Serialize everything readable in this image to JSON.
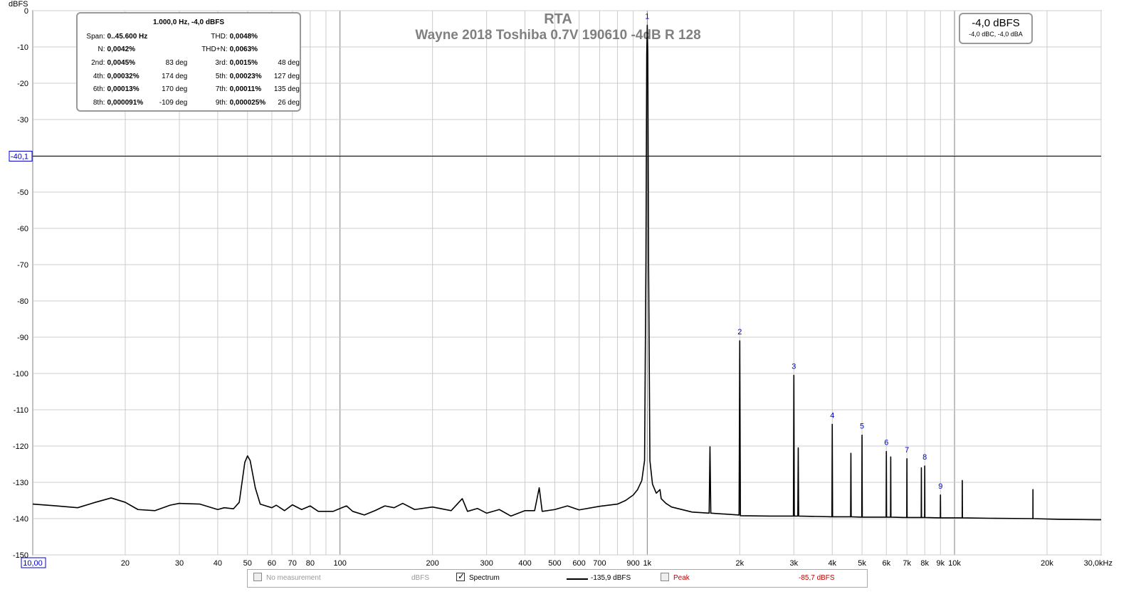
{
  "chart_data": {
    "type": "line",
    "title": "RTA",
    "subtitle": "Wayne 2018 Toshiba 0.7V 190610 -4dB R 128",
    "ylabel": "dBFS",
    "xscale": "log",
    "xlim": [
      10,
      30000
    ],
    "ylim": [
      -150,
      0
    ],
    "yticks": [
      "0",
      "-10",
      "-20",
      "-30",
      "-40,1",
      "-50",
      "-60",
      "-70",
      "-80",
      "-90",
      "-100",
      "-110",
      "-120",
      "-130",
      "-140",
      "-150"
    ],
    "xticks": [
      {
        "v": 10,
        "t": "10,00"
      },
      {
        "v": 20,
        "t": "20"
      },
      {
        "v": 30,
        "t": "30"
      },
      {
        "v": 40,
        "t": "40"
      },
      {
        "v": 50,
        "t": "50"
      },
      {
        "v": 60,
        "t": "60"
      },
      {
        "v": 70,
        "t": "70"
      },
      {
        "v": 80,
        "t": "80"
      },
      {
        "v": 100,
        "t": "100"
      },
      {
        "v": 200,
        "t": "200"
      },
      {
        "v": 300,
        "t": "300"
      },
      {
        "v": 400,
        "t": "400"
      },
      {
        "v": 500,
        "t": "500"
      },
      {
        "v": 600,
        "t": "600"
      },
      {
        "v": 700,
        "t": "700"
      },
      {
        "v": 900,
        "t": "900"
      },
      {
        "v": 1000,
        "t": "1k"
      },
      {
        "v": 2000,
        "t": "2k"
      },
      {
        "v": 3000,
        "t": "3k"
      },
      {
        "v": 4000,
        "t": "4k"
      },
      {
        "v": 5000,
        "t": "5k"
      },
      {
        "v": 6000,
        "t": "6k"
      },
      {
        "v": 7000,
        "t": "7k"
      },
      {
        "v": 8000,
        "t": "8k"
      },
      {
        "v": 9000,
        "t": "9k"
      },
      {
        "v": 10000,
        "t": "10k"
      },
      {
        "v": 20000,
        "t": "20k"
      },
      {
        "v": 30000,
        "t": "30,0kHz"
      }
    ],
    "cursor_y": -40.1,
    "grid": true,
    "series": [
      {
        "name": "Spectrum",
        "color": "#000000",
        "points": [
          [
            10,
            -136
          ],
          [
            12,
            -136.5
          ],
          [
            14,
            -137
          ],
          [
            16,
            -135.5
          ],
          [
            18,
            -134.3
          ],
          [
            20,
            -135.5
          ],
          [
            22,
            -137.5
          ],
          [
            25,
            -137.8
          ],
          [
            28,
            -136.3
          ],
          [
            30,
            -135.8
          ],
          [
            35,
            -136
          ],
          [
            40,
            -137.5
          ],
          [
            42,
            -137
          ],
          [
            45,
            -137.3
          ],
          [
            47,
            -135.5
          ],
          [
            49,
            -124.5
          ],
          [
            50,
            -122.7
          ],
          [
            51,
            -124
          ],
          [
            53,
            -131.5
          ],
          [
            55,
            -136
          ],
          [
            60,
            -137
          ],
          [
            62,
            -136.3
          ],
          [
            66,
            -137.8
          ],
          [
            70,
            -136.2
          ],
          [
            75,
            -137.5
          ],
          [
            80,
            -136.5
          ],
          [
            85,
            -138
          ],
          [
            95,
            -138
          ],
          [
            100,
            -137.2
          ],
          [
            105,
            -136.5
          ],
          [
            110,
            -138
          ],
          [
            120,
            -139
          ],
          [
            130,
            -137.8
          ],
          [
            140,
            -136.5
          ],
          [
            150,
            -137
          ],
          [
            160,
            -135.8
          ],
          [
            175,
            -137.5
          ],
          [
            200,
            -136.8
          ],
          [
            230,
            -137.8
          ],
          [
            250,
            -134.5
          ],
          [
            260,
            -138
          ],
          [
            280,
            -137.2
          ],
          [
            300,
            -138.5
          ],
          [
            330,
            -137.5
          ],
          [
            360,
            -139.3
          ],
          [
            400,
            -137.8
          ],
          [
            430,
            -137.8
          ],
          [
            445,
            -131.5
          ],
          [
            455,
            -138
          ],
          [
            500,
            -137.5
          ],
          [
            550,
            -136.5
          ],
          [
            600,
            -137.6
          ],
          [
            700,
            -136.6
          ],
          [
            800,
            -136
          ],
          [
            850,
            -135
          ],
          [
            900,
            -133.5
          ],
          [
            930,
            -132
          ],
          [
            960,
            -129.5
          ],
          [
            980,
            -124
          ],
          [
            990,
            -70
          ],
          [
            996,
            -12
          ],
          [
            1000,
            -4
          ],
          [
            1004,
            -12
          ],
          [
            1010,
            -70
          ],
          [
            1020,
            -124
          ],
          [
            1040,
            -130.5
          ],
          [
            1070,
            -133
          ],
          [
            1100,
            -132
          ],
          [
            1110,
            -134.5
          ],
          [
            1150,
            -135.8
          ],
          [
            1200,
            -136.8
          ],
          [
            1400,
            -138.2
          ],
          [
            1590,
            -138.5
          ],
          [
            1600,
            -120.2
          ],
          [
            1610,
            -138.5
          ],
          [
            1990,
            -139
          ],
          [
            2000,
            -91
          ],
          [
            2010,
            -139.2
          ],
          [
            2500,
            -139.3
          ],
          [
            2990,
            -139.3
          ],
          [
            3000,
            -100.5
          ],
          [
            3010,
            -139.3
          ],
          [
            3090,
            -139.3
          ],
          [
            3100,
            -120.5
          ],
          [
            3110,
            -139.3
          ],
          [
            3990,
            -139.5
          ],
          [
            4000,
            -114
          ],
          [
            4010,
            -139.5
          ],
          [
            4590,
            -139.5
          ],
          [
            4600,
            -122
          ],
          [
            4610,
            -139.5
          ],
          [
            4990,
            -139.6
          ],
          [
            5000,
            -117
          ],
          [
            5010,
            -139.6
          ],
          [
            5990,
            -139.6
          ],
          [
            6000,
            -121.5
          ],
          [
            6010,
            -139.6
          ],
          [
            6190,
            -139.6
          ],
          [
            6200,
            -123
          ],
          [
            6210,
            -139.6
          ],
          [
            6990,
            -139.7
          ],
          [
            7000,
            -123.5
          ],
          [
            7010,
            -139.7
          ],
          [
            7790,
            -139.7
          ],
          [
            7800,
            -126
          ],
          [
            7810,
            -139.7
          ],
          [
            7990,
            -139.7
          ],
          [
            8000,
            -125.5
          ],
          [
            8010,
            -139.7
          ],
          [
            8990,
            -139.8
          ],
          [
            9000,
            -133.5
          ],
          [
            9010,
            -139.8
          ],
          [
            10590,
            -139.8
          ],
          [
            10600,
            -129.5
          ],
          [
            10610,
            -139.8
          ],
          [
            13000,
            -139.9
          ],
          [
            17990,
            -140
          ],
          [
            18000,
            -132
          ],
          [
            18010,
            -140
          ],
          [
            22000,
            -140.2
          ],
          [
            29000,
            -140.3
          ],
          [
            30000,
            -140.3
          ]
        ]
      }
    ],
    "harmonics": [
      {
        "n": "1",
        "f": 1000,
        "db": -4
      },
      {
        "n": "2",
        "f": 2000,
        "db": -91
      },
      {
        "n": "3",
        "f": 3000,
        "db": -100.5
      },
      {
        "n": "4",
        "f": 4000,
        "db": -114
      },
      {
        "n": "5",
        "f": 5000,
        "db": -117
      },
      {
        "n": "6",
        "f": 6000,
        "db": -121.5
      },
      {
        "n": "7",
        "f": 7000,
        "db": -123.5
      },
      {
        "n": "8",
        "f": 8000,
        "db": -125.5
      },
      {
        "n": "9",
        "f": 9000,
        "db": -133.5
      }
    ]
  },
  "stats": {
    "header": "1.000,0 Hz, -4,0 dBFS",
    "rows": [
      [
        "Span:",
        "0..45.600 Hz",
        "",
        "THD:",
        "0,0048%",
        ""
      ],
      [
        "N:",
        "0,0042%",
        "",
        "THD+N:",
        "0,0063%",
        ""
      ],
      [
        "2nd:",
        "0,0045%",
        "83 deg",
        "3rd:",
        "0,0015%",
        "48 deg"
      ],
      [
        "4th:",
        "0,00032%",
        "174 deg",
        "5th:",
        "0,00023%",
        "127 deg"
      ],
      [
        "6th:",
        "0,00013%",
        "170 deg",
        "7th:",
        "0,00011%",
        "135 deg"
      ],
      [
        "8th:",
        "0,000091%",
        "-109 deg",
        "9th:",
        "0,000025%",
        "26 deg"
      ]
    ]
  },
  "level": {
    "main": "-4,0 dBFS",
    "sub": "-4,0 dBC, -4,0 dBA"
  },
  "legend": {
    "no_measurement": "No measurement",
    "no_measurement_unit": "dBFS",
    "spectrum": "Spectrum",
    "spectrum_value": "-135,9 dBFS",
    "peak": "Peak",
    "peak_value": "-85,7 dBFS",
    "peak_color": "#c00000"
  }
}
